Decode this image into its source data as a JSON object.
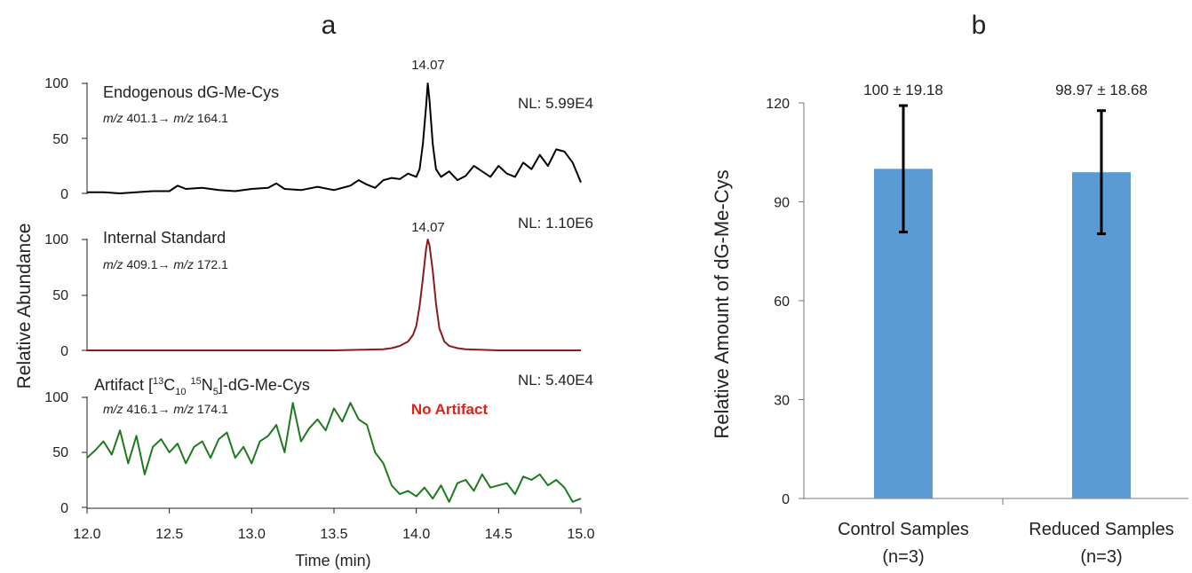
{
  "panels": {
    "a": "a",
    "b": "b"
  },
  "chart_data": [
    {
      "type": "line",
      "panel": "a",
      "xlabel": "Time (min)",
      "ylabel": "Relative Abundance",
      "xlim": [
        12.0,
        15.0
      ],
      "x_ticks": [
        "12.0",
        "12.5",
        "13.0",
        "13.5",
        "14.0",
        "14.5",
        "15.0"
      ],
      "traces": [
        {
          "label": "Endogenous dG-Me-Cys",
          "transition": {
            "mz1_label": "m/z",
            "mz1": "401.1→",
            "mz2_label": "m/z",
            "mz2": "164.1"
          },
          "nl": "NL: 5.99E4",
          "peak_label": "14.07",
          "peak_x": 14.07,
          "color": "#000000",
          "ylim": [
            0,
            100
          ],
          "y_ticks": [
            "100",
            "50",
            "0"
          ],
          "x": [
            12.0,
            12.1,
            12.2,
            12.3,
            12.4,
            12.5,
            12.55,
            12.6,
            12.7,
            12.8,
            12.9,
            13.0,
            13.1,
            13.15,
            13.2,
            13.3,
            13.4,
            13.5,
            13.6,
            13.65,
            13.7,
            13.75,
            13.8,
            13.85,
            13.9,
            13.95,
            14.0,
            14.02,
            14.04,
            14.06,
            14.07,
            14.08,
            14.1,
            14.12,
            14.15,
            14.2,
            14.25,
            14.3,
            14.35,
            14.4,
            14.45,
            14.5,
            14.55,
            14.6,
            14.65,
            14.7,
            14.75,
            14.8,
            14.85,
            14.9,
            14.95,
            15.0
          ],
          "values": [
            1,
            1,
            0,
            1,
            2,
            2,
            7,
            4,
            5,
            3,
            2,
            4,
            5,
            9,
            4,
            3,
            6,
            3,
            7,
            12,
            8,
            5,
            12,
            14,
            13,
            18,
            15,
            22,
            45,
            80,
            100,
            85,
            45,
            22,
            15,
            20,
            12,
            16,
            25,
            20,
            15,
            25,
            18,
            15,
            28,
            22,
            35,
            25,
            40,
            38,
            28,
            10
          ]
        },
        {
          "label": "Internal Standard",
          "transition": {
            "mz1_label": "m/z",
            "mz1": "409.1→",
            "mz2_label": "m/z",
            "mz2": "172.1"
          },
          "nl": "NL: 1.10E6",
          "peak_label": "14.07",
          "peak_x": 14.07,
          "color": "#8b1a1a",
          "ylim": [
            0,
            100
          ],
          "y_ticks": [
            "100",
            "50",
            "0"
          ],
          "x": [
            12.0,
            12.5,
            13.0,
            13.5,
            13.8,
            13.85,
            13.9,
            13.95,
            13.98,
            14.0,
            14.02,
            14.04,
            14.06,
            14.07,
            14.08,
            14.1,
            14.12,
            14.14,
            14.17,
            14.2,
            14.25,
            14.3,
            14.5,
            15.0
          ],
          "values": [
            0,
            0,
            0,
            0,
            1,
            2,
            4,
            8,
            14,
            22,
            40,
            65,
            92,
            100,
            95,
            72,
            42,
            20,
            8,
            4,
            2,
            1,
            0,
            0
          ]
        },
        {
          "label": "Artifact [13C10 15N5]-dG-Me-Cys",
          "label_parts": {
            "prefix": "Artifact [",
            "sup1": "13",
            "c": "C",
            "sub1": "10",
            "sup2": "15",
            "n": "N",
            "sub2": "5",
            "suffix": "]-dG-Me-Cys"
          },
          "transition": {
            "mz1_label": "m/z",
            "mz1": "416.1→",
            "mz2_label": "m/z",
            "mz2": "174.1"
          },
          "nl": "NL: 5.40E4",
          "note": "No Artifact",
          "note_color": "#e0201c",
          "color": "#1e7a1e",
          "ylim": [
            0,
            100
          ],
          "y_ticks": [
            "100",
            "50",
            "0"
          ],
          "x": [
            12.0,
            12.05,
            12.1,
            12.15,
            12.2,
            12.25,
            12.3,
            12.35,
            12.4,
            12.45,
            12.5,
            12.55,
            12.6,
            12.65,
            12.7,
            12.75,
            12.8,
            12.85,
            12.9,
            12.95,
            13.0,
            13.05,
            13.1,
            13.15,
            13.2,
            13.25,
            13.3,
            13.35,
            13.4,
            13.45,
            13.5,
            13.55,
            13.6,
            13.65,
            13.7,
            13.75,
            13.8,
            13.85,
            13.9,
            13.95,
            14.0,
            14.05,
            14.1,
            14.15,
            14.2,
            14.25,
            14.3,
            14.35,
            14.4,
            14.45,
            14.5,
            14.55,
            14.6,
            14.65,
            14.7,
            14.75,
            14.8,
            14.85,
            14.9,
            14.95,
            15.0
          ],
          "values": [
            45,
            52,
            60,
            48,
            70,
            40,
            65,
            30,
            55,
            62,
            50,
            58,
            40,
            55,
            60,
            45,
            62,
            68,
            45,
            55,
            40,
            60,
            65,
            75,
            50,
            95,
            60,
            72,
            80,
            70,
            90,
            78,
            95,
            80,
            75,
            50,
            40,
            20,
            12,
            15,
            10,
            18,
            8,
            20,
            5,
            22,
            25,
            15,
            30,
            18,
            20,
            22,
            12,
            28,
            25,
            30,
            20,
            25,
            18,
            5,
            8
          ]
        }
      ]
    },
    {
      "type": "bar",
      "panel": "b",
      "ylabel": "Relative Amount of dG-Me-Cys",
      "ylim": [
        0,
        120
      ],
      "y_ticks": [
        "0",
        "30",
        "60",
        "90",
        "120"
      ],
      "categories": [
        {
          "line1": "Control Samples",
          "line2": "(n=3)"
        },
        {
          "line1": "Reduced Samples",
          "line2": "(n=3)"
        }
      ],
      "values": [
        100,
        98.97
      ],
      "errors": [
        19.18,
        18.68
      ],
      "labels": [
        "100 ± 19.18",
        "98.97 ± 18.68"
      ],
      "bar_color": "#5b9bd5"
    }
  ]
}
